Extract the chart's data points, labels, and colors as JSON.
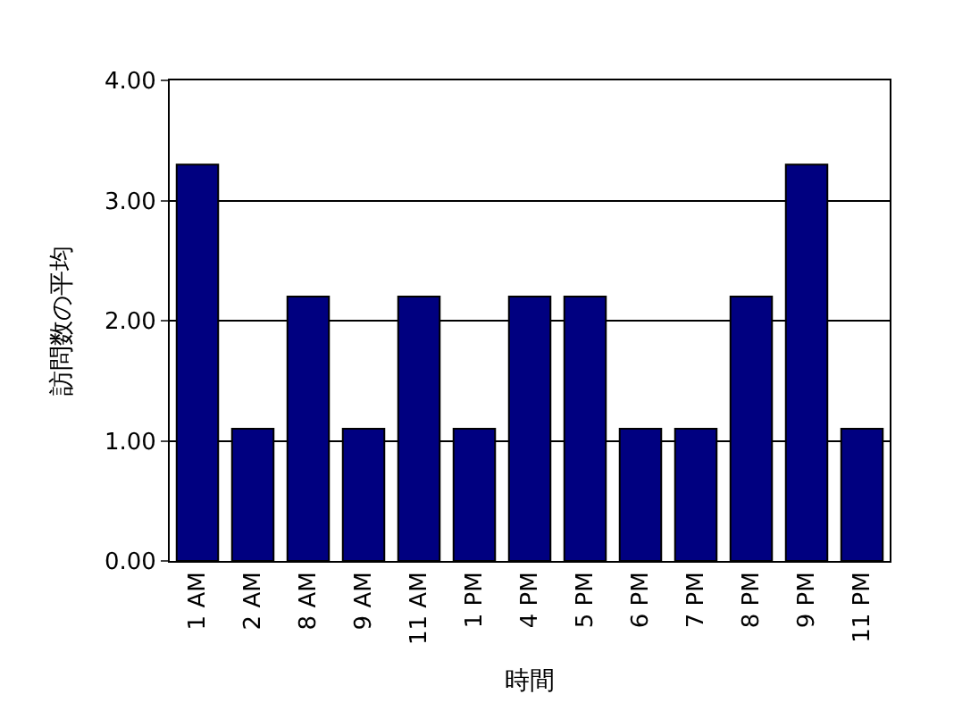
{
  "chart_data": {
    "type": "bar",
    "xlabel": "時間",
    "ylabel": "訪問数の平均",
    "categories": [
      "1 AM",
      "2 AM",
      "8 AM",
      "9 AM",
      "11 AM",
      "1 PM",
      "4 PM",
      "5 PM",
      "6 PM",
      "7 PM",
      "8 PM",
      "9 PM",
      "11 PM"
    ],
    "values": [
      3.3,
      1.1,
      2.2,
      1.1,
      2.2,
      1.1,
      2.2,
      2.2,
      1.1,
      1.1,
      2.2,
      3.3,
      1.1
    ],
    "color": "#000080",
    "ylim": [
      0,
      4
    ],
    "yticks": [
      {
        "value": 0,
        "label": "0.00"
      },
      {
        "value": 1,
        "label": "1.00"
      },
      {
        "value": 2,
        "label": "2.00"
      },
      {
        "value": 3,
        "label": "3.00"
      },
      {
        "value": 4,
        "label": "4.00"
      }
    ],
    "grid": "y"
  }
}
